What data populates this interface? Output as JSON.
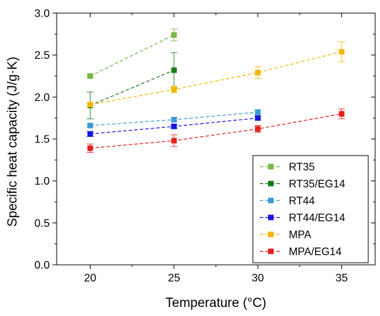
{
  "chart_data": {
    "type": "line",
    "title": "",
    "xlabel": "Temperature (°C)",
    "ylabel": "Specific heat capacity (J/g·K)",
    "xlim": [
      18,
      37
    ],
    "ylim": [
      0.0,
      3.0
    ],
    "xticks": [
      20,
      25,
      30,
      35
    ],
    "yticks": [
      0.0,
      0.5,
      1.0,
      1.5,
      2.0,
      2.5,
      3.0
    ],
    "xtick_labels": [
      "20",
      "25",
      "30",
      "35"
    ],
    "ytick_labels": [
      "0.0",
      "0.5",
      "1.0",
      "1.5",
      "2.0",
      "2.5",
      "3.0"
    ],
    "grid": false,
    "legend_position": "bottom-right",
    "series": [
      {
        "name": "RT35",
        "color": "#77b843",
        "x": [
          20,
          25
        ],
        "y": [
          2.25,
          2.74
        ],
        "err": [
          0.02,
          0.07
        ]
      },
      {
        "name": "RT35/EG14",
        "color": "#1a7a1a",
        "x": [
          20,
          25
        ],
        "y": [
          1.9,
          2.32
        ],
        "err": [
          0.16,
          0.21
        ]
      },
      {
        "name": "RT44",
        "color": "#3d9ad1",
        "x": [
          20,
          25,
          30
        ],
        "y": [
          1.66,
          1.73,
          1.82
        ],
        "err": [
          0.02,
          0.02,
          0.03
        ]
      },
      {
        "name": "RT44/EG14",
        "color": "#1515e0",
        "x": [
          20,
          25,
          30
        ],
        "y": [
          1.56,
          1.65,
          1.75
        ],
        "err": [
          0.03,
          0.02,
          0.02
        ]
      },
      {
        "name": "MPA",
        "color": "#f2b705",
        "x": [
          20,
          25,
          30,
          35
        ],
        "y": [
          1.91,
          2.09,
          2.29,
          2.54
        ],
        "err": [
          0.02,
          0.04,
          0.07,
          0.12
        ]
      },
      {
        "name": "MPA/EG14",
        "color": "#e3201b",
        "x": [
          20,
          25,
          30,
          35
        ],
        "y": [
          1.39,
          1.48,
          1.62,
          1.8
        ],
        "err": [
          0.05,
          0.07,
          0.04,
          0.06
        ]
      }
    ]
  }
}
